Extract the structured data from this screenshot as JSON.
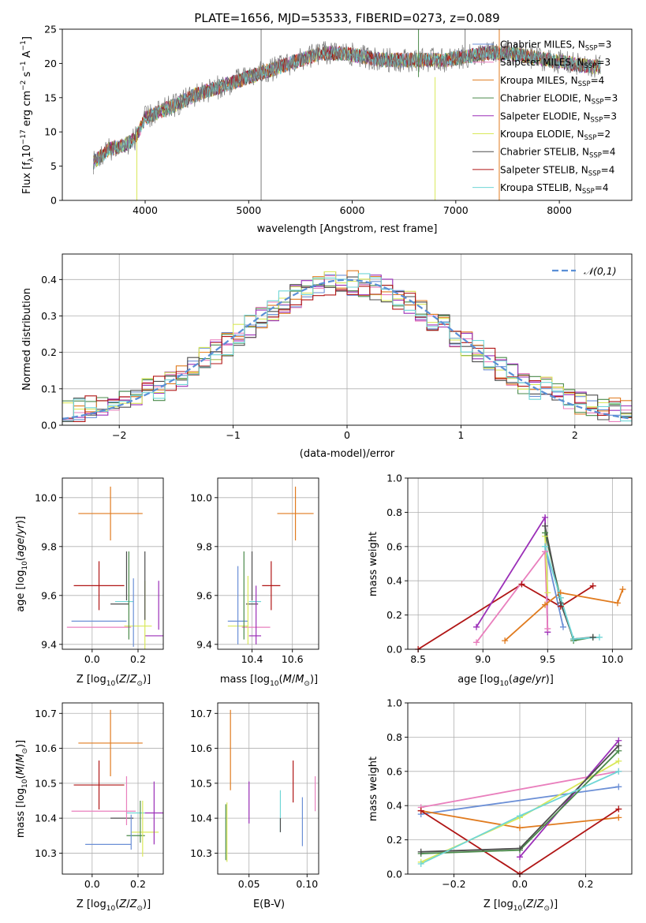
{
  "colors": {
    "Chabrier MILES": "#6b8fd6",
    "Salpeter MILES": "#e97fbd",
    "Kroupa MILES": "#e07b1f",
    "Chabrier ELODIE": "#4a8a4a",
    "Salpeter ELODIE": "#9b2fb8",
    "Kroupa ELODIE": "#d9e85a",
    "Chabrier STELIB": "#4d4d4d",
    "Salpeter STELIB": "#b01515",
    "Kroupa STELIB": "#6fd6d6",
    "gaussian": "#5a8fd6",
    "grid": "#b0b0b0"
  },
  "chart_data": [
    {
      "id": "spectrum",
      "type": "line",
      "title": "PLATE=1656, MJD=53533, FIBERID=0273, z=0.089",
      "xlabel": "wavelength [Angstrom, rest frame]",
      "ylabel": "Flux [f_λ10^-17 erg cm^-2 s^-1 A^-1]",
      "xlim": [
        3200,
        8700
      ],
      "ylim": [
        0,
        25
      ],
      "xticks": [
        4000,
        5000,
        6000,
        7000,
        8000
      ],
      "yticks": [
        0,
        5,
        10,
        15,
        20,
        25
      ],
      "grid": false,
      "legend_position": "right",
      "continuum": {
        "x": [
          3500,
          3650,
          3800,
          3900,
          4000,
          4150,
          4300,
          4500,
          4700,
          4900,
          5100,
          5300,
          5500,
          5700,
          5900,
          6100,
          6300,
          6500,
          6700,
          6900,
          7100,
          7300,
          7500,
          7700,
          7900,
          8100,
          8300
        ],
        "y": [
          5.5,
          7.5,
          8.0,
          9.0,
          12.0,
          13.0,
          14.0,
          15.5,
          16.5,
          17.5,
          18.5,
          19.5,
          20.5,
          21.5,
          21.5,
          21.0,
          20.5,
          20.5,
          20.5,
          20.5,
          21.0,
          21.5,
          21.5,
          21.0,
          20.5,
          20.0,
          19.5
        ]
      },
      "spikes": [
        {
          "x": 3920,
          "from": 0,
          "to": 10
        },
        {
          "x": 5120,
          "from": 0,
          "to": 25
        },
        {
          "x": 6640,
          "from": 18,
          "to": 25
        },
        {
          "x": 6800,
          "from": 0,
          "to": 18
        },
        {
          "x": 7090,
          "from": 20,
          "to": 25
        },
        {
          "x": 7420,
          "from": 0,
          "to": 25
        }
      ],
      "legend": [
        {
          "model": "Chabrier MILES",
          "nssp": "3"
        },
        {
          "model": "Salpeter MILES",
          "nssp": "3"
        },
        {
          "model": "Kroupa MILES",
          "nssp": "4"
        },
        {
          "model": "Chabrier ELODIE",
          "nssp": "3"
        },
        {
          "model": "Salpeter ELODIE",
          "nssp": "3"
        },
        {
          "model": "Kroupa ELODIE",
          "nssp": "2"
        },
        {
          "model": "Chabrier STELIB",
          "nssp": "4"
        },
        {
          "model": "Salpeter STELIB",
          "nssp": "4"
        },
        {
          "model": "Kroupa STELIB",
          "nssp": "4"
        }
      ]
    },
    {
      "id": "residuals",
      "type": "step",
      "xlabel": "(data-model)/error",
      "ylabel": "Normed distribution",
      "xlim": [
        -2.5,
        2.5
      ],
      "ylim": [
        0,
        0.47
      ],
      "xticks": [
        -2,
        -1,
        0,
        1,
        2
      ],
      "yticks": [
        0.0,
        0.1,
        0.2,
        0.3,
        0.4
      ],
      "grid": true,
      "legend_position": "top-right",
      "reference_label": "𝒩(0,1)",
      "bin_width": 0.1
    },
    {
      "id": "age_vs_Z",
      "type": "errorbar",
      "xlabel": "Z [log10(Z/Z⊙)]",
      "ylabel": "age [log10(age/yr)]",
      "xlim": [
        -0.13,
        0.31
      ],
      "ylim": [
        9.38,
        10.08
      ],
      "xticks": [
        0.0,
        0.2
      ],
      "yticks": [
        9.4,
        9.6,
        9.8,
        10.0
      ],
      "grid": true,
      "points": [
        {
          "model": "Kroupa MILES",
          "x": 0.08,
          "y": 9.935,
          "ex": 0.14,
          "ey": 0.11
        },
        {
          "model": "Salpeter STELIB",
          "x": 0.03,
          "y": 9.64,
          "ex": 0.11,
          "ey": 0.1
        },
        {
          "model": "Chabrier MILES",
          "x": 0.03,
          "y": 9.495,
          "ex": 0.12,
          "ey": 0.0
        },
        {
          "model": "Chabrier STELIB",
          "x": 0.12,
          "y": 9.565,
          "ex": 0.04,
          "ey": 0.0
        },
        {
          "model": "Kroupa STELIB",
          "x": 0.14,
          "y": 9.575,
          "ex": 0.04,
          "ey": 0.0
        },
        {
          "model": "Salpeter MILES",
          "x": 0.03,
          "y": 9.47,
          "ex": 0.14,
          "ey": 0.0
        },
        {
          "model": "Kroupa ELODIE",
          "x": 0.2,
          "y": 9.475,
          "ex": 0.06,
          "ey": 0.0
        },
        {
          "model": "Salpeter ELODIE",
          "x": 0.27,
          "y": 9.435,
          "ex": 0.04,
          "ey": 0.0
        },
        {
          "model": "Chabrier ELODIE",
          "x": 0.16,
          "y": 9.6,
          "ex": 0.0,
          "ey": 0.18
        },
        {
          "model": "Chabrier STELIB",
          "x": 0.15,
          "y": 9.68,
          "ex": 0.0,
          "ey": 0.1
        },
        {
          "model": "Chabrier MILES",
          "x": 0.18,
          "y": 9.53,
          "ex": 0.0,
          "ey": 0.14
        },
        {
          "model": "Kroupa ELODIE",
          "x": 0.23,
          "y": 9.52,
          "ex": 0.0,
          "ey": 0.14
        },
        {
          "model": "Chabrier STELIB",
          "x": 0.23,
          "y": 9.64,
          "ex": 0.0,
          "ey": 0.14
        },
        {
          "model": "Salpeter ELODIE",
          "x": 0.29,
          "y": 9.56,
          "ex": 0.0,
          "ey": 0.1
        }
      ]
    },
    {
      "id": "age_vs_mass",
      "type": "errorbar",
      "xlabel": "mass [log10(M/M⊙)]",
      "ylabel": "",
      "xlim": [
        10.23,
        10.73
      ],
      "ylim": [
        9.38,
        10.08
      ],
      "xticks": [
        10.4,
        10.6
      ],
      "yticks": [
        9.4,
        9.6,
        9.8,
        10.0
      ],
      "grid": true,
      "points": [
        {
          "model": "Kroupa MILES",
          "x": 10.615,
          "y": 9.935,
          "ex": 0.09,
          "ey": 0.11
        },
        {
          "model": "Salpeter STELIB",
          "x": 10.495,
          "y": 9.64,
          "ex": 0.045,
          "ey": 0.1
        },
        {
          "model": "Chabrier MILES",
          "x": 10.33,
          "y": 9.495,
          "ex": 0.05,
          "ey": 0.0
        },
        {
          "model": "Chabrier STELIB",
          "x": 10.4,
          "y": 9.565,
          "ex": 0.03,
          "ey": 0.0
        },
        {
          "model": "Kroupa STELIB",
          "x": 10.415,
          "y": 9.575,
          "ex": 0.03,
          "ey": 0.0
        },
        {
          "model": "Salpeter MILES",
          "x": 10.42,
          "y": 9.47,
          "ex": 0.07,
          "ey": 0.0
        },
        {
          "model": "Kroupa ELODIE",
          "x": 10.33,
          "y": 9.475,
          "ex": 0.05,
          "ey": 0.0
        },
        {
          "model": "Salpeter ELODIE",
          "x": 10.415,
          "y": 9.435,
          "ex": 0.03,
          "ey": 0.0
        },
        {
          "model": "Chabrier ELODIE",
          "x": 10.36,
          "y": 9.6,
          "ex": 0.0,
          "ey": 0.18
        },
        {
          "model": "Chabrier STELIB",
          "x": 10.4,
          "y": 9.68,
          "ex": 0.0,
          "ey": 0.1
        },
        {
          "model": "Chabrier MILES",
          "x": 10.33,
          "y": 9.56,
          "ex": 0.0,
          "ey": 0.16
        },
        {
          "model": "Kroupa ELODIE",
          "x": 10.38,
          "y": 9.54,
          "ex": 0.0,
          "ey": 0.14
        },
        {
          "model": "Salpeter ELODIE",
          "x": 10.42,
          "y": 9.52,
          "ex": 0.0,
          "ey": 0.12
        }
      ]
    },
    {
      "id": "mass_weight_vs_age",
      "type": "line",
      "xlabel": "age  [log10(age/yr)]",
      "ylabel": "mass weight",
      "xlim": [
        8.42,
        10.15
      ],
      "ylim": [
        0,
        1
      ],
      "xticks": [
        8.5,
        9.0,
        9.5,
        10.0
      ],
      "yticks": [
        0.0,
        0.2,
        0.4,
        0.6,
        0.8,
        1.0
      ],
      "grid": true,
      "series": [
        {
          "model": "Salpeter STELIB",
          "x": [
            8.5,
            9.3,
            9.6,
            9.85
          ],
          "y": [
            0.0,
            0.38,
            0.25,
            0.37
          ]
        },
        {
          "model": "Salpeter ELODIE",
          "x": [
            8.95,
            9.48,
            9.5
          ],
          "y": [
            0.13,
            0.77,
            0.1
          ]
        },
        {
          "model": "Salpeter MILES",
          "x": [
            8.95,
            9.48,
            9.5
          ],
          "y": [
            0.04,
            0.57,
            0.12
          ]
        },
        {
          "model": "Kroupa MILES",
          "x": [
            9.17,
            9.48,
            9.6,
            10.04,
            10.08
          ],
          "y": [
            0.05,
            0.26,
            0.33,
            0.27,
            0.35
          ]
        },
        {
          "model": "Chabrier MILES",
          "x": [
            9.48,
            9.62
          ],
          "y": [
            0.6,
            0.13
          ]
        },
        {
          "model": "Kroupa ELODIE",
          "x": [
            9.48,
            9.5
          ],
          "y": [
            0.66,
            0.33
          ]
        },
        {
          "model": "Chabrier ELODIE",
          "x": [
            9.48,
            9.6,
            9.7,
            9.85
          ],
          "y": [
            0.68,
            0.3,
            0.05,
            0.07
          ]
        },
        {
          "model": "Chabrier STELIB",
          "x": [
            9.48,
            9.6,
            9.7,
            9.85
          ],
          "y": [
            0.72,
            0.27,
            0.06,
            0.07
          ]
        },
        {
          "model": "Kroupa STELIB",
          "x": [
            9.48,
            9.6,
            9.7,
            9.9
          ],
          "y": [
            0.6,
            0.3,
            0.06,
            0.07
          ]
        }
      ]
    },
    {
      "id": "mass_vs_Z",
      "type": "errorbar",
      "xlabel": "Z [log10(Z/Z⊙)]",
      "ylabel": "mass [log10(M/M⊙)]",
      "xlim": [
        -0.13,
        0.31
      ],
      "ylim": [
        10.24,
        10.73
      ],
      "xticks": [
        0.0,
        0.2
      ],
      "yticks": [
        10.3,
        10.4,
        10.5,
        10.6,
        10.7
      ],
      "grid": true,
      "points": [
        {
          "model": "Kroupa MILES",
          "x": 0.08,
          "y": 10.615,
          "ex": 0.14,
          "ey": 0.095
        },
        {
          "model": "Salpeter STELIB",
          "x": 0.03,
          "y": 10.495,
          "ex": 0.11,
          "ey": 0.07
        },
        {
          "model": "Salpeter MILES",
          "x": 0.05,
          "y": 10.42,
          "ex": 0.14,
          "ey": 0.0
        },
        {
          "model": "Chabrier STELIB",
          "x": 0.13,
          "y": 10.4,
          "ex": 0.05,
          "ey": 0.0
        },
        {
          "model": "Chabrier MILES",
          "x": 0.07,
          "y": 10.325,
          "ex": 0.1,
          "ey": 0.0
        },
        {
          "model": "Kroupa STELIB",
          "x": 0.19,
          "y": 10.415,
          "ex": 0.04,
          "ey": 0.0
        },
        {
          "model": "Kroupa ELODIE",
          "x": 0.23,
          "y": 10.36,
          "ex": 0.06,
          "ey": 0.0
        },
        {
          "model": "Chabrier ELODIE",
          "x": 0.19,
          "y": 10.35,
          "ex": 0.04,
          "ey": 0.0
        },
        {
          "model": "Salpeter ELODIE",
          "x": 0.27,
          "y": 10.415,
          "ex": 0.04,
          "ey": 0.09
        },
        {
          "model": "Salpeter MILES",
          "x": 0.15,
          "y": 10.45,
          "ex": 0.0,
          "ey": 0.07
        },
        {
          "model": "Chabrier MILES",
          "x": 0.17,
          "y": 10.36,
          "ex": 0.0,
          "ey": 0.05
        },
        {
          "model": "Chabrier ELODIE",
          "x": 0.21,
          "y": 10.39,
          "ex": 0.0,
          "ey": 0.06
        },
        {
          "model": "Kroupa ELODIE",
          "x": 0.22,
          "y": 10.37,
          "ex": 0.0,
          "ey": 0.08
        }
      ]
    },
    {
      "id": "mass_vs_ebv",
      "type": "errorbar",
      "xlabel": "E(B-V)",
      "ylabel": "",
      "xlim": [
        0.023,
        0.11
      ],
      "ylim": [
        10.24,
        10.73
      ],
      "xticks": [
        0.05,
        0.1
      ],
      "yticks": [
        10.3,
        10.4,
        10.5,
        10.6,
        10.7
      ],
      "grid": true,
      "points": [
        {
          "model": "Kroupa MILES",
          "x": 0.034,
          "y": 10.595,
          "ex": 0.0,
          "ey": 0.115
        },
        {
          "model": "Kroupa ELODIE",
          "x": 0.031,
          "y": 10.36,
          "ex": 0.0,
          "ey": 0.085
        },
        {
          "model": "Chabrier ELODIE",
          "x": 0.03,
          "y": 10.36,
          "ex": 0.0,
          "ey": 0.08
        },
        {
          "model": "Salpeter ELODIE",
          "x": 0.05,
          "y": 10.445,
          "ex": 0.0,
          "ey": 0.06
        },
        {
          "model": "Kroupa STELIB",
          "x": 0.077,
          "y": 10.42,
          "ex": 0.0,
          "ey": 0.06
        },
        {
          "model": "Chabrier STELIB",
          "x": 0.077,
          "y": 10.38,
          "ex": 0.0,
          "ey": 0.02
        },
        {
          "model": "Salpeter STELIB",
          "x": 0.088,
          "y": 10.505,
          "ex": 0.0,
          "ey": 0.06
        },
        {
          "model": "Chabrier MILES",
          "x": 0.096,
          "y": 10.39,
          "ex": 0.0,
          "ey": 0.07
        },
        {
          "model": "Salpeter MILES",
          "x": 0.107,
          "y": 10.47,
          "ex": 0.0,
          "ey": 0.05
        }
      ]
    },
    {
      "id": "mass_weight_vs_Z",
      "type": "line",
      "xlabel": "Z [log10(Z/Z⊙)]",
      "ylabel": "mass weight",
      "xlim": [
        -0.34,
        0.34
      ],
      "ylim": [
        0,
        1
      ],
      "xticks": [
        -0.2,
        0.0,
        0.2
      ],
      "yticks": [
        0.0,
        0.2,
        0.4,
        0.6,
        0.8,
        1.0
      ],
      "grid": true,
      "series": [
        {
          "model": "Salpeter MILES",
          "x": [
            -0.3,
            0.3
          ],
          "y": [
            0.39,
            0.6
          ]
        },
        {
          "model": "Chabrier MILES",
          "x": [
            -0.3,
            0.3
          ],
          "y": [
            0.35,
            0.51
          ]
        },
        {
          "model": "Kroupa MILES",
          "x": [
            -0.3,
            0.0,
            0.3
          ],
          "y": [
            0.37,
            0.27,
            0.33
          ]
        },
        {
          "model": "Salpeter STELIB",
          "x": [
            -0.3,
            0.0,
            0.3
          ],
          "y": [
            0.37,
            0.0,
            0.38
          ]
        },
        {
          "model": "Salpeter ELODIE",
          "x": [
            0.0,
            0.3
          ],
          "y": [
            0.1,
            0.78
          ]
        },
        {
          "model": "Kroupa ELODIE",
          "x": [
            -0.3,
            0.0,
            0.3
          ],
          "y": [
            0.07,
            0.33,
            0.66
          ]
        },
        {
          "model": "Chabrier ELODIE",
          "x": [
            -0.3,
            0.0,
            0.3
          ],
          "y": [
            0.12,
            0.14,
            0.72
          ]
        },
        {
          "model": "Chabrier STELIB",
          "x": [
            -0.3,
            0.0,
            0.3
          ],
          "y": [
            0.13,
            0.15,
            0.75
          ]
        },
        {
          "model": "Kroupa STELIB",
          "x": [
            -0.3,
            0.0,
            0.3
          ],
          "y": [
            0.06,
            0.34,
            0.6
          ]
        }
      ]
    }
  ]
}
